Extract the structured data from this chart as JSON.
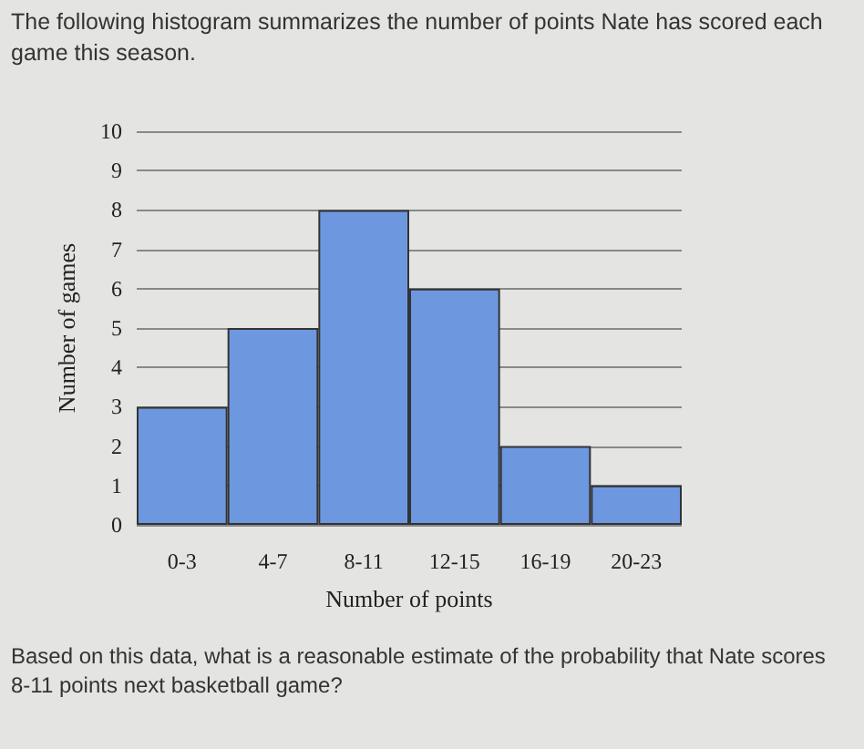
{
  "chart_data": {
    "type": "bar",
    "title": "The following histogram summarizes the number of points Nate has scored each game this season.",
    "categories": [
      "0-3",
      "4-7",
      "8-11",
      "12-15",
      "16-19",
      "20-23"
    ],
    "values": [
      3,
      5,
      8,
      6,
      2,
      1
    ],
    "color": "#6d98e0",
    "xlabel": "Number of points",
    "ylabel": "Number of games",
    "ylim": [
      0,
      10
    ],
    "yticks": [
      0,
      1,
      2,
      3,
      4,
      5,
      6,
      7,
      8,
      9,
      10
    ],
    "grid": "y",
    "annotations": [
      "Based on this data, what is a reasonable estimate of the probability that Nate scores 8-11 points next basketball game?"
    ]
  }
}
